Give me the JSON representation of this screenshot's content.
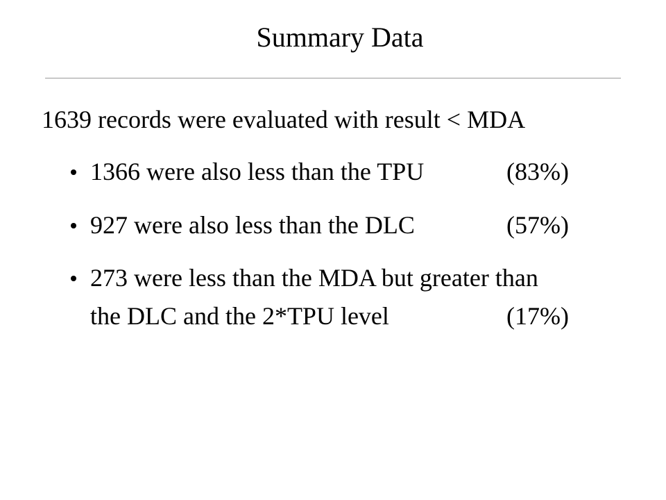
{
  "title": "Summary Data",
  "intro": "1639 records were evaluated with result < MDA",
  "bullets": [
    {
      "lines": [
        "1366 were also less than the TPU"
      ],
      "percent": "(83%)"
    },
    {
      "lines": [
        "927 were also less than the DLC"
      ],
      "percent": "(57%)"
    },
    {
      "lines": [
        "273 were less than the MDA but greater than",
        "the DLC and the 2*TPU level"
      ],
      "percent": "(17%)"
    }
  ]
}
